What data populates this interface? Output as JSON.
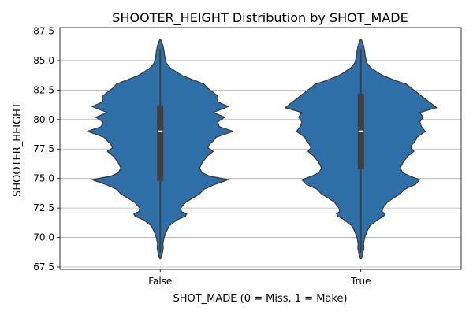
{
  "chart_data": {
    "type": "violin",
    "title": "SHOOTER_HEIGHT Distribution by SHOT_MADE",
    "xlabel": "SHOT_MADE (0 = Miss, 1 = Make)",
    "ylabel": "SHOOTER_HEIGHT",
    "categories": [
      "False",
      "True"
    ],
    "ylim": [
      67.3,
      87.8
    ],
    "yticks": [
      "67.5",
      "70.0",
      "72.5",
      "75.0",
      "77.5",
      "80.0",
      "82.5",
      "85.0",
      "87.5"
    ],
    "grid": "y",
    "fill_color": "#2f6fa8",
    "box_color": "#3f3f3f",
    "median_color": "#ffffff",
    "violins": [
      {
        "category": "False",
        "whisker": [
          68.7,
          86.0
        ],
        "q1": 74.8,
        "median": 79.0,
        "q3": 81.2,
        "profile": [
          [
            68.2,
            0.005
          ],
          [
            68.6,
            0.025
          ],
          [
            69.1,
            0.04
          ],
          [
            69.5,
            0.035
          ],
          [
            70.0,
            0.05
          ],
          [
            70.5,
            0.08
          ],
          [
            71.0,
            0.12
          ],
          [
            71.5,
            0.22
          ],
          [
            71.8,
            0.33
          ],
          [
            72.0,
            0.35
          ],
          [
            72.2,
            0.28
          ],
          [
            72.5,
            0.27
          ],
          [
            73.0,
            0.34
          ],
          [
            73.3,
            0.42
          ],
          [
            73.7,
            0.52
          ],
          [
            74.1,
            0.58
          ],
          [
            74.5,
            0.72
          ],
          [
            74.9,
            0.9
          ],
          [
            75.2,
            0.65
          ],
          [
            75.5,
            0.55
          ],
          [
            75.9,
            0.52
          ],
          [
            76.4,
            0.56
          ],
          [
            76.9,
            0.62
          ],
          [
            77.3,
            0.7
          ],
          [
            77.6,
            0.63
          ],
          [
            77.9,
            0.65
          ],
          [
            78.2,
            0.7
          ],
          [
            78.5,
            0.74
          ],
          [
            79.0,
            0.96
          ],
          [
            79.4,
            0.78
          ],
          [
            79.8,
            0.76
          ],
          [
            80.2,
            0.85
          ],
          [
            80.6,
            0.7
          ],
          [
            81.1,
            0.9
          ],
          [
            81.5,
            0.76
          ],
          [
            82.0,
            0.76
          ],
          [
            82.4,
            0.68
          ],
          [
            82.7,
            0.62
          ],
          [
            83.0,
            0.58
          ],
          [
            83.3,
            0.46
          ],
          [
            83.7,
            0.3
          ],
          [
            84.0,
            0.22
          ],
          [
            84.4,
            0.13
          ],
          [
            84.8,
            0.08
          ],
          [
            85.3,
            0.06
          ],
          [
            85.8,
            0.05
          ],
          [
            86.3,
            0.035
          ],
          [
            86.8,
            0.005
          ]
        ]
      },
      {
        "category": "True",
        "whisker": [
          68.7,
          86.0
        ],
        "q1": 75.8,
        "median": 79.0,
        "q3": 82.2,
        "profile": [
          [
            68.2,
            0.005
          ],
          [
            68.6,
            0.025
          ],
          [
            69.1,
            0.04
          ],
          [
            69.5,
            0.035
          ],
          [
            70.0,
            0.05
          ],
          [
            70.5,
            0.08
          ],
          [
            71.0,
            0.12
          ],
          [
            71.5,
            0.22
          ],
          [
            71.8,
            0.3
          ],
          [
            72.0,
            0.32
          ],
          [
            72.2,
            0.28
          ],
          [
            72.5,
            0.29
          ],
          [
            73.0,
            0.35
          ],
          [
            73.3,
            0.42
          ],
          [
            73.7,
            0.52
          ],
          [
            74.1,
            0.58
          ],
          [
            74.5,
            0.72
          ],
          [
            74.9,
            0.78
          ],
          [
            75.2,
            0.65
          ],
          [
            75.5,
            0.55
          ],
          [
            75.9,
            0.52
          ],
          [
            76.4,
            0.56
          ],
          [
            76.9,
            0.62
          ],
          [
            77.3,
            0.7
          ],
          [
            77.6,
            0.66
          ],
          [
            77.9,
            0.68
          ],
          [
            78.2,
            0.72
          ],
          [
            78.5,
            0.74
          ],
          [
            79.0,
            0.85
          ],
          [
            79.4,
            0.8
          ],
          [
            79.8,
            0.78
          ],
          [
            80.2,
            0.82
          ],
          [
            80.6,
            0.78
          ],
          [
            81.0,
            1.0
          ],
          [
            81.5,
            0.9
          ],
          [
            82.0,
            0.8
          ],
          [
            82.4,
            0.72
          ],
          [
            82.7,
            0.66
          ],
          [
            83.0,
            0.6
          ],
          [
            83.3,
            0.46
          ],
          [
            83.7,
            0.3
          ],
          [
            84.0,
            0.22
          ],
          [
            84.4,
            0.13
          ],
          [
            84.8,
            0.08
          ],
          [
            85.3,
            0.06
          ],
          [
            85.8,
            0.05
          ],
          [
            86.3,
            0.035
          ],
          [
            86.8,
            0.005
          ]
        ]
      }
    ]
  }
}
